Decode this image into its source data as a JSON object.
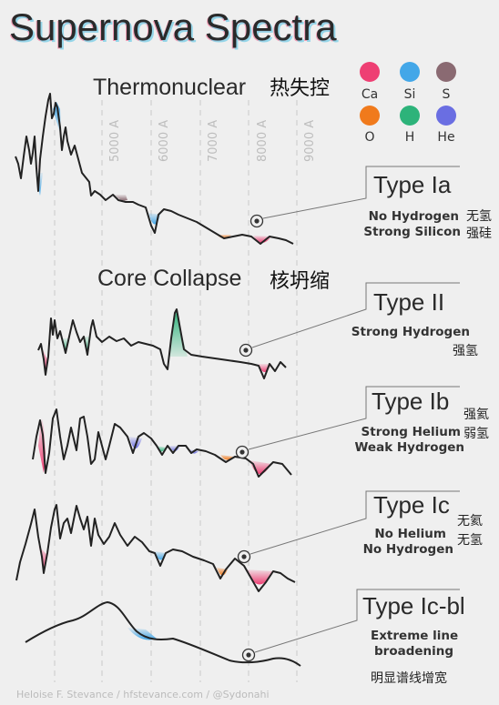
{
  "title": "Supernova Spectra",
  "sections": {
    "thermonuclear": {
      "label": "Thermonuclear",
      "label_zh": "热失控"
    },
    "core_collapse": {
      "label": "Core Collapse",
      "label_zh": "核坍缩"
    }
  },
  "legend": [
    {
      "symbol": "Ca",
      "color": "#ee3f73"
    },
    {
      "symbol": "Si",
      "color": "#43a7e8"
    },
    {
      "symbol": "S",
      "color": "#8a6a72"
    },
    {
      "symbol": "O",
      "color": "#f07a1c"
    },
    {
      "symbol": "H",
      "color": "#2db37a"
    },
    {
      "symbol": "He",
      "color": "#6a6ee2"
    }
  ],
  "wavelength_ticks": [
    "5000 A",
    "6000 A",
    "7000 A",
    "8000 A",
    "9000 A"
  ],
  "types": [
    {
      "name": "Type Ia",
      "desc": [
        "No Hydrogen",
        "Strong Silicon"
      ],
      "desc_zh": [
        "无氢",
        "强硅"
      ]
    },
    {
      "name": "Type II",
      "desc": [
        "Strong Hydrogen"
      ],
      "desc_zh": [
        "强氢"
      ]
    },
    {
      "name": "Type Ib",
      "desc": [
        "Strong Helium",
        "Weak Hydrogen"
      ],
      "desc_zh": [
        "强氦",
        "弱氢"
      ]
    },
    {
      "name": "Type Ic",
      "desc": [
        "No Helium",
        "No Hydrogen"
      ],
      "desc_zh": [
        "无氦",
        "无氢"
      ]
    },
    {
      "name": "Type Ic-bl",
      "desc": [
        "Extreme line",
        "broadening"
      ],
      "desc_zh": [
        "明显谱线增宽"
      ]
    }
  ],
  "credit": "Heloise F. Stevance  / hfstevance.com / @Sydonahi"
}
